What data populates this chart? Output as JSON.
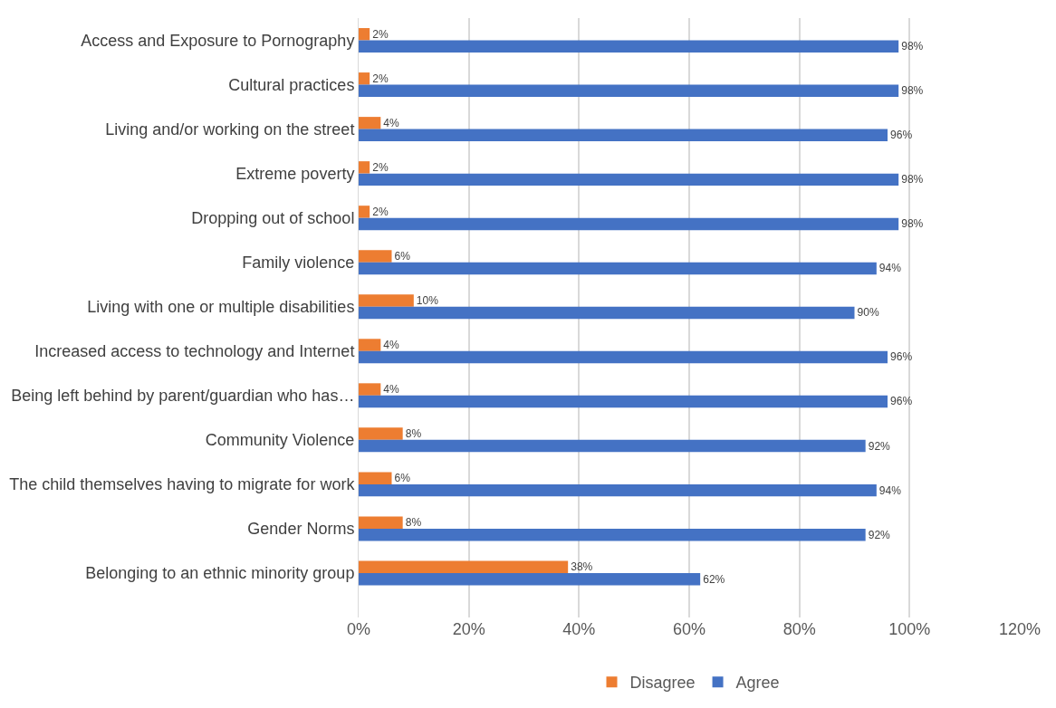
{
  "chart_data": {
    "type": "bar",
    "orientation": "horizontal",
    "categories": [
      "Access and Exposure to Pornography",
      "Cultural practices",
      "Living and/or working on the street",
      "Extreme poverty",
      "Dropping out of school",
      "Family violence",
      "Living with one or multiple disabilities",
      "Increased access to technology and Internet",
      "Being left behind by parent/guardian who has…",
      "Community Violence",
      "The child themselves having to migrate for work",
      "Gender Norms",
      "Belonging to an ethnic minority group"
    ],
    "series": [
      {
        "name": "Disagree",
        "color": "#ed7d31",
        "values": [
          2,
          2,
          4,
          2,
          2,
          6,
          10,
          4,
          4,
          8,
          6,
          8,
          38
        ],
        "value_labels": [
          "2%",
          "2%",
          "4%",
          "2%",
          "2%",
          "6%",
          "10%",
          "4%",
          "4%",
          "8%",
          "6%",
          "8%",
          "38%"
        ]
      },
      {
        "name": "Agree",
        "color": "#4472c4",
        "values": [
          98,
          98,
          96,
          98,
          98,
          94,
          90,
          96,
          96,
          92,
          94,
          92,
          62
        ],
        "value_labels": [
          "98%",
          "98%",
          "96%",
          "98%",
          "98%",
          "94%",
          "90%",
          "96%",
          "96%",
          "92%",
          "94%",
          "92%",
          "62%"
        ]
      }
    ],
    "xlim": [
      0,
      120
    ],
    "xticks": [
      {
        "value": 0,
        "label": "0%"
      },
      {
        "value": 20,
        "label": "20%"
      },
      {
        "value": 40,
        "label": "40%"
      },
      {
        "value": 60,
        "label": "60%"
      },
      {
        "value": 80,
        "label": "80%"
      },
      {
        "value": 100,
        "label": "100%"
      },
      {
        "value": 120,
        "label": "120%"
      }
    ],
    "grid": "x",
    "legend": "bottom"
  }
}
